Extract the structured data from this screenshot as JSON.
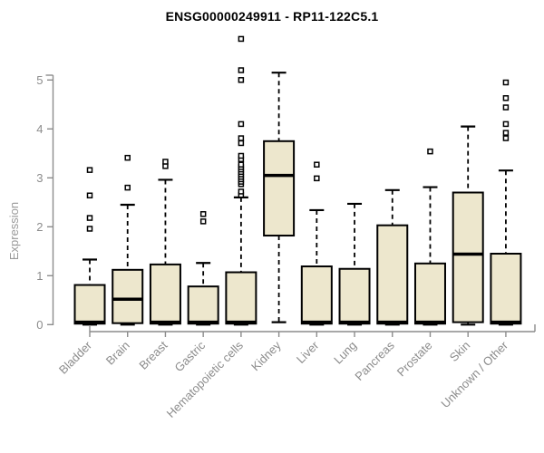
{
  "page": {
    "background_color": "#ffffff"
  },
  "chart_data": {
    "type": "boxplot",
    "title": "ENSG00000249911 - RP11-122C5.1",
    "ylabel": "Expression",
    "xlabel": "",
    "ylim": [
      0,
      5
    ],
    "yticks": [
      0,
      1,
      2,
      3,
      4,
      5
    ],
    "grid": false,
    "legend": null,
    "colors": {
      "box_fill": "#EDE7CD",
      "box_border": "#000000",
      "median": "#000000",
      "whisker": "#000000",
      "outlier_stroke": "#000000",
      "outlier_fill": "#ffffff",
      "axis": "#8C8C8C",
      "tick_label": "#8C8C8C",
      "title": "#000000",
      "ylabel_color": "#999999"
    },
    "categories": [
      "Bladder",
      "Brain",
      "Breast",
      "Gastric",
      "Hematopoietic cells",
      "Kidney",
      "Liver",
      "Lung",
      "Pancreas",
      "Prostate",
      "Skin",
      "Unknown / Other"
    ],
    "series": [
      {
        "name": "Bladder",
        "lower_whisker": 0,
        "q1": 0.02,
        "median": 0.05,
        "q3": 0.81,
        "upper_whisker": 1.33,
        "outliers": [
          1.96,
          2.18,
          2.64,
          3.16
        ]
      },
      {
        "name": "Brain",
        "lower_whisker": 0,
        "q1": 0.03,
        "median": 0.52,
        "q3": 1.12,
        "upper_whisker": 2.45,
        "outliers": [
          2.8,
          3.41
        ]
      },
      {
        "name": "Breast",
        "lower_whisker": 0,
        "q1": 0.02,
        "median": 0.05,
        "q3": 1.23,
        "upper_whisker": 2.96,
        "outliers": [
          3.24,
          3.33
        ]
      },
      {
        "name": "Gastric",
        "lower_whisker": 0,
        "q1": 0.02,
        "median": 0.05,
        "q3": 0.78,
        "upper_whisker": 1.26,
        "outliers": [
          2.11,
          2.26
        ]
      },
      {
        "name": "Hematopoietic cells",
        "lower_whisker": 0,
        "q1": 0.02,
        "median": 0.05,
        "q3": 1.07,
        "upper_whisker": 2.6,
        "outliers": [
          2.65,
          2.72,
          2.87,
          2.92,
          2.97,
          3.02,
          3.07,
          3.12,
          3.17,
          3.22,
          3.27,
          3.38,
          3.45,
          3.71,
          3.81,
          4.1,
          5.0,
          5.2,
          5.84
        ]
      },
      {
        "name": "Kidney",
        "lower_whisker": 0.05,
        "q1": 1.82,
        "median": 3.05,
        "q3": 3.75,
        "upper_whisker": 5.15,
        "outliers": []
      },
      {
        "name": "Liver",
        "lower_whisker": 0,
        "q1": 0.02,
        "median": 0.05,
        "q3": 1.19,
        "upper_whisker": 2.34,
        "outliers": [
          2.99,
          3.27
        ]
      },
      {
        "name": "Lung",
        "lower_whisker": 0,
        "q1": 0.02,
        "median": 0.05,
        "q3": 1.14,
        "upper_whisker": 2.47,
        "outliers": []
      },
      {
        "name": "Pancreas",
        "lower_whisker": 0,
        "q1": 0.02,
        "median": 0.05,
        "q3": 2.03,
        "upper_whisker": 2.75,
        "outliers": []
      },
      {
        "name": "Prostate",
        "lower_whisker": 0,
        "q1": 0.02,
        "median": 0.05,
        "q3": 1.25,
        "upper_whisker": 2.81,
        "outliers": [
          3.54
        ]
      },
      {
        "name": "Skin",
        "lower_whisker": 0,
        "q1": 0.05,
        "median": 1.44,
        "q3": 2.7,
        "upper_whisker": 4.05,
        "outliers": []
      },
      {
        "name": "Unknown / Other",
        "lower_whisker": 0,
        "q1": 0.02,
        "median": 0.05,
        "q3": 1.45,
        "upper_whisker": 3.15,
        "outliers": [
          3.81,
          3.92,
          4.1,
          4.44,
          4.63,
          4.95
        ]
      }
    ]
  }
}
